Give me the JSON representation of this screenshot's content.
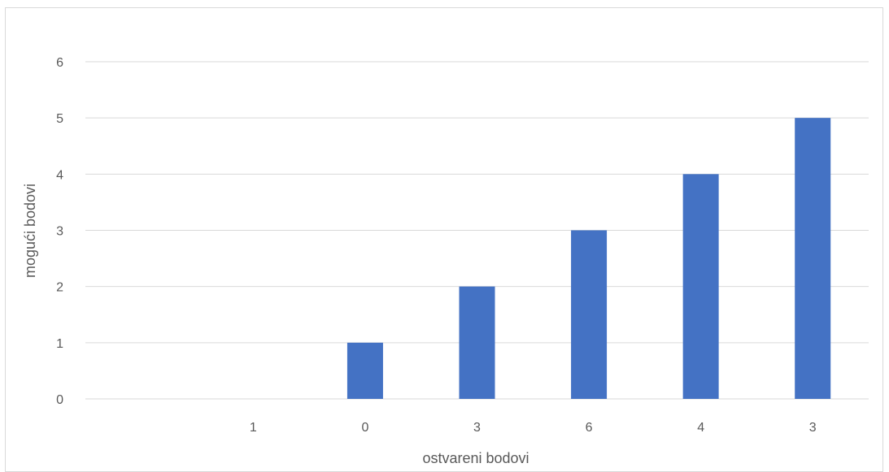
{
  "chart_data": {
    "type": "bar",
    "title": "",
    "xlabel": "ostvareni bodovi",
    "ylabel": "mogući bodovi",
    "categories": [
      "",
      "1",
      "0",
      "3",
      "6",
      "4",
      "3"
    ],
    "values": [
      0,
      0,
      1,
      2,
      3,
      4,
      5
    ],
    "ylim": [
      0,
      6
    ],
    "yticks": [
      "0",
      "1",
      "2",
      "3",
      "4",
      "5",
      "6"
    ],
    "grid": true,
    "legend": "none",
    "bar_color": "#4472C4",
    "grid_color": "#d9d9d9",
    "text_color": "#595959"
  }
}
